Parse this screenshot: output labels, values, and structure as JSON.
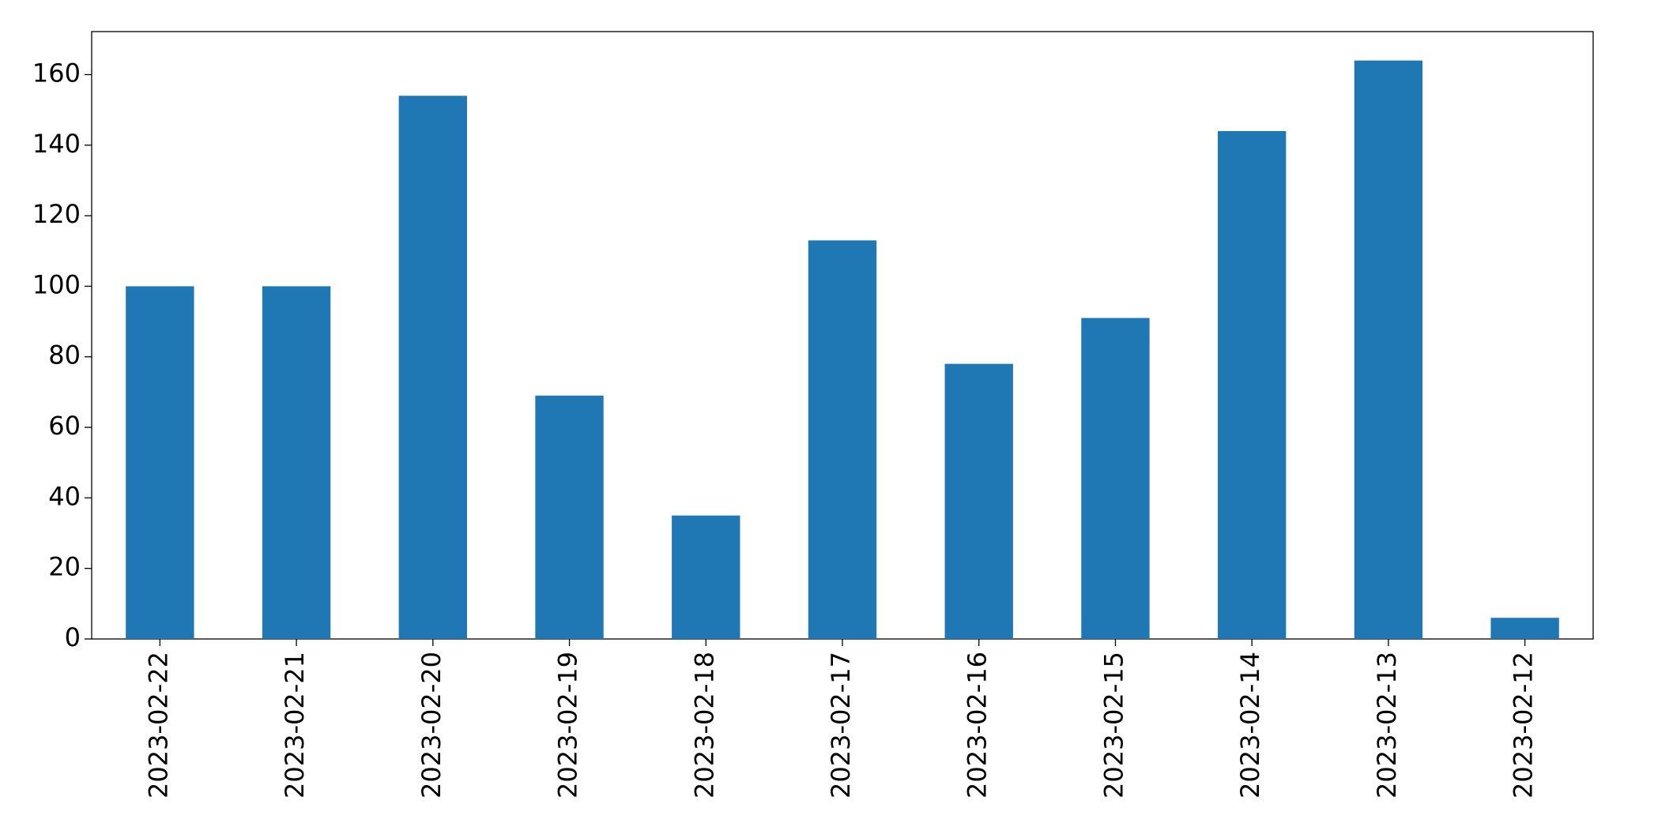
{
  "chart_data": {
    "type": "bar",
    "categories": [
      "2023-02-22",
      "2023-02-21",
      "2023-02-20",
      "2023-02-19",
      "2023-02-18",
      "2023-02-17",
      "2023-02-16",
      "2023-02-15",
      "2023-02-14",
      "2023-02-13",
      "2023-02-12"
    ],
    "values": [
      100,
      100,
      154,
      69,
      35,
      113,
      78,
      91,
      144,
      164,
      6
    ],
    "color": "#1f77b4",
    "ylim": [
      0,
      172.2
    ],
    "yticks": [
      0,
      20,
      40,
      60,
      80,
      100,
      120,
      140,
      160
    ],
    "grid": false
  }
}
